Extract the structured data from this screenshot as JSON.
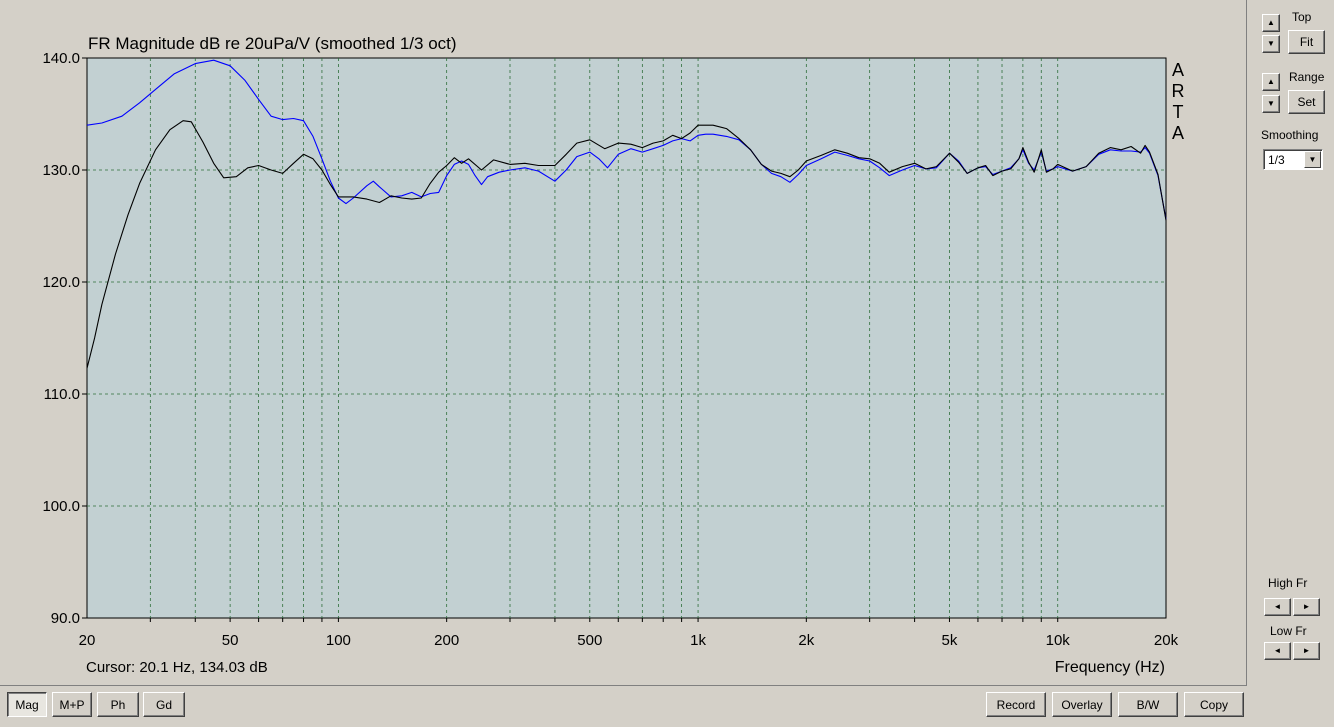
{
  "chart_data": {
    "type": "line",
    "title": "FR Magnitude dB re 20uPa/V (smoothed 1/3 oct)",
    "xlabel": "Frequency (Hz)",
    "ylabel": "",
    "x_scale": "log",
    "xlim": [
      20,
      20000
    ],
    "ylim": [
      90,
      140
    ],
    "x_ticks": [
      {
        "value": 20,
        "label": "20"
      },
      {
        "value": 50,
        "label": "50"
      },
      {
        "value": 100,
        "label": "100"
      },
      {
        "value": 200,
        "label": "200"
      },
      {
        "value": 500,
        "label": "500"
      },
      {
        "value": 1000,
        "label": "1k"
      },
      {
        "value": 2000,
        "label": "2k"
      },
      {
        "value": 5000,
        "label": "5k"
      },
      {
        "value": 10000,
        "label": "10k"
      },
      {
        "value": 20000,
        "label": "20k"
      }
    ],
    "y_ticks": [
      {
        "value": 90,
        "label": "90.0"
      },
      {
        "value": 100,
        "label": "100.0"
      },
      {
        "value": 110,
        "label": "110.0"
      },
      {
        "value": 120,
        "label": "120.0"
      },
      {
        "value": 130,
        "label": "130.0"
      },
      {
        "value": 140,
        "label": "140.0"
      }
    ],
    "grid": true,
    "watermark": "ARTA",
    "cursor_text": "Cursor: 20.1 Hz, 134.03 dB",
    "series": [
      {
        "color": "#0000ff",
        "points": [
          [
            20,
            134.0
          ],
          [
            22,
            134.2
          ],
          [
            25,
            134.8
          ],
          [
            28,
            136.0
          ],
          [
            31,
            137.2
          ],
          [
            35,
            138.6
          ],
          [
            40,
            139.5
          ],
          [
            45,
            139.8
          ],
          [
            50,
            139.3
          ],
          [
            55,
            138.0
          ],
          [
            60,
            136.3
          ],
          [
            65,
            134.8
          ],
          [
            70,
            134.5
          ],
          [
            75,
            134.6
          ],
          [
            80,
            134.4
          ],
          [
            85,
            133.0
          ],
          [
            90,
            131.0
          ],
          [
            95,
            129.0
          ],
          [
            100,
            127.5
          ],
          [
            105,
            127.0
          ],
          [
            110,
            127.5
          ],
          [
            120,
            128.6
          ],
          [
            125,
            129.0
          ],
          [
            130,
            128.5
          ],
          [
            140,
            127.6
          ],
          [
            150,
            127.7
          ],
          [
            160,
            128.0
          ],
          [
            170,
            127.6
          ],
          [
            180,
            127.9
          ],
          [
            190,
            128.0
          ],
          [
            200,
            129.5
          ],
          [
            210,
            130.5
          ],
          [
            220,
            130.8
          ],
          [
            230,
            130.5
          ],
          [
            240,
            129.5
          ],
          [
            250,
            128.7
          ],
          [
            260,
            129.4
          ],
          [
            280,
            129.8
          ],
          [
            300,
            130.0
          ],
          [
            330,
            130.2
          ],
          [
            360,
            129.9
          ],
          [
            400,
            129.0
          ],
          [
            430,
            130.0
          ],
          [
            460,
            131.2
          ],
          [
            500,
            131.6
          ],
          [
            530,
            131.0
          ],
          [
            560,
            130.2
          ],
          [
            600,
            131.4
          ],
          [
            650,
            131.9
          ],
          [
            700,
            131.6
          ],
          [
            750,
            131.9
          ],
          [
            800,
            132.2
          ],
          [
            850,
            132.6
          ],
          [
            900,
            132.8
          ],
          [
            950,
            132.6
          ],
          [
            1000,
            133.1
          ],
          [
            1050,
            133.2
          ],
          [
            1100,
            133.2
          ],
          [
            1200,
            133.0
          ],
          [
            1300,
            132.7
          ],
          [
            1400,
            131.8
          ],
          [
            1500,
            130.5
          ],
          [
            1600,
            129.7
          ],
          [
            1700,
            129.4
          ],
          [
            1800,
            128.9
          ],
          [
            1900,
            129.6
          ],
          [
            2000,
            130.4
          ],
          [
            2200,
            131.0
          ],
          [
            2400,
            131.6
          ],
          [
            2600,
            131.3
          ],
          [
            2800,
            131.0
          ],
          [
            3000,
            130.8
          ],
          [
            3200,
            130.2
          ],
          [
            3400,
            129.5
          ],
          [
            3700,
            130.0
          ],
          [
            4000,
            130.4
          ],
          [
            4300,
            130.1
          ],
          [
            4600,
            130.2
          ],
          [
            5000,
            131.5
          ],
          [
            5300,
            130.8
          ],
          [
            5600,
            129.7
          ],
          [
            6000,
            130.2
          ],
          [
            6300,
            130.3
          ],
          [
            6600,
            129.6
          ],
          [
            7000,
            129.9
          ],
          [
            7400,
            130.2
          ],
          [
            7800,
            131.0
          ],
          [
            8000,
            131.8
          ],
          [
            8300,
            130.6
          ],
          [
            8600,
            130.0
          ],
          [
            9000,
            131.6
          ],
          [
            9300,
            129.9
          ],
          [
            9700,
            130.1
          ],
          [
            10000,
            130.3
          ],
          [
            11000,
            129.9
          ],
          [
            12000,
            130.3
          ],
          [
            13000,
            131.4
          ],
          [
            14000,
            131.8
          ],
          [
            15000,
            131.7
          ],
          [
            16000,
            131.7
          ],
          [
            17000,
            131.6
          ],
          [
            17500,
            132.0
          ],
          [
            18000,
            131.5
          ],
          [
            19000,
            129.5
          ],
          [
            20000,
            125.6
          ]
        ]
      },
      {
        "color": "#000000",
        "points": [
          [
            20,
            112.3
          ],
          [
            21,
            115.0
          ],
          [
            22,
            118.0
          ],
          [
            24,
            122.5
          ],
          [
            26,
            126.0
          ],
          [
            28,
            128.8
          ],
          [
            31,
            131.8
          ],
          [
            34,
            133.6
          ],
          [
            37,
            134.4
          ],
          [
            39,
            134.3
          ],
          [
            42,
            132.5
          ],
          [
            45,
            130.6
          ],
          [
            48,
            129.3
          ],
          [
            52,
            129.4
          ],
          [
            56,
            130.2
          ],
          [
            60,
            130.4
          ],
          [
            65,
            130.0
          ],
          [
            70,
            129.7
          ],
          [
            75,
            130.6
          ],
          [
            80,
            131.4
          ],
          [
            85,
            131.0
          ],
          [
            90,
            130.0
          ],
          [
            95,
            128.7
          ],
          [
            100,
            127.6
          ],
          [
            110,
            127.6
          ],
          [
            120,
            127.4
          ],
          [
            130,
            127.1
          ],
          [
            140,
            127.7
          ],
          [
            150,
            127.5
          ],
          [
            160,
            127.4
          ],
          [
            170,
            127.5
          ],
          [
            180,
            128.8
          ],
          [
            190,
            129.8
          ],
          [
            200,
            130.4
          ],
          [
            210,
            131.1
          ],
          [
            220,
            130.6
          ],
          [
            230,
            131.0
          ],
          [
            250,
            130.0
          ],
          [
            270,
            130.9
          ],
          [
            300,
            130.5
          ],
          [
            330,
            130.6
          ],
          [
            360,
            130.4
          ],
          [
            400,
            130.4
          ],
          [
            430,
            131.4
          ],
          [
            460,
            132.4
          ],
          [
            500,
            132.7
          ],
          [
            550,
            131.9
          ],
          [
            600,
            132.4
          ],
          [
            650,
            132.3
          ],
          [
            700,
            132.0
          ],
          [
            750,
            132.4
          ],
          [
            800,
            132.6
          ],
          [
            850,
            133.1
          ],
          [
            900,
            132.8
          ],
          [
            950,
            133.3
          ],
          [
            1000,
            134.0
          ],
          [
            1100,
            134.0
          ],
          [
            1200,
            133.7
          ],
          [
            1300,
            132.8
          ],
          [
            1400,
            131.8
          ],
          [
            1500,
            130.5
          ],
          [
            1600,
            129.9
          ],
          [
            1700,
            129.7
          ],
          [
            1800,
            129.4
          ],
          [
            1900,
            130.0
          ],
          [
            2000,
            130.8
          ],
          [
            2200,
            131.3
          ],
          [
            2400,
            131.8
          ],
          [
            2600,
            131.5
          ],
          [
            2800,
            131.1
          ],
          [
            3000,
            131.0
          ],
          [
            3200,
            130.6
          ],
          [
            3400,
            129.8
          ],
          [
            3700,
            130.3
          ],
          [
            4000,
            130.6
          ],
          [
            4300,
            130.1
          ],
          [
            4600,
            130.3
          ],
          [
            5000,
            131.5
          ],
          [
            5300,
            130.7
          ],
          [
            5600,
            129.7
          ],
          [
            6000,
            130.2
          ],
          [
            6300,
            130.4
          ],
          [
            6600,
            129.5
          ],
          [
            7000,
            129.9
          ],
          [
            7400,
            130.1
          ],
          [
            7800,
            131.0
          ],
          [
            8000,
            132.0
          ],
          [
            8300,
            130.7
          ],
          [
            8600,
            129.8
          ],
          [
            9000,
            131.8
          ],
          [
            9300,
            129.8
          ],
          [
            9700,
            130.1
          ],
          [
            10000,
            130.5
          ],
          [
            11000,
            129.9
          ],
          [
            12000,
            130.3
          ],
          [
            13000,
            131.5
          ],
          [
            14000,
            132.0
          ],
          [
            15000,
            131.8
          ],
          [
            16000,
            132.1
          ],
          [
            17000,
            131.5
          ],
          [
            17500,
            132.2
          ],
          [
            18000,
            131.6
          ],
          [
            19000,
            129.6
          ],
          [
            20000,
            125.5
          ]
        ]
      }
    ]
  },
  "controls": {
    "top": {
      "label": "Top",
      "button": "Fit",
      "up": "▲",
      "down": "▼"
    },
    "range": {
      "label": "Range",
      "button": "Set",
      "up": "▲",
      "down": "▼"
    },
    "smoothing": {
      "label": "Smoothing",
      "value": "1/3",
      "arrow": "▼"
    },
    "high_fr": {
      "label": "High Fr",
      "left": "◄",
      "right": "►"
    },
    "low_fr": {
      "label": "Low Fr",
      "left": "◄",
      "right": "►"
    }
  },
  "bottom_bar": {
    "view_tabs": [
      {
        "label": "Mag",
        "selected": true
      },
      {
        "label": "M+P",
        "selected": false
      },
      {
        "label": "Ph",
        "selected": false
      },
      {
        "label": "Gd",
        "selected": false
      }
    ],
    "actions": [
      {
        "label": "Record"
      },
      {
        "label": "Overlay"
      },
      {
        "label": "B/W"
      },
      {
        "label": "Copy"
      }
    ]
  }
}
